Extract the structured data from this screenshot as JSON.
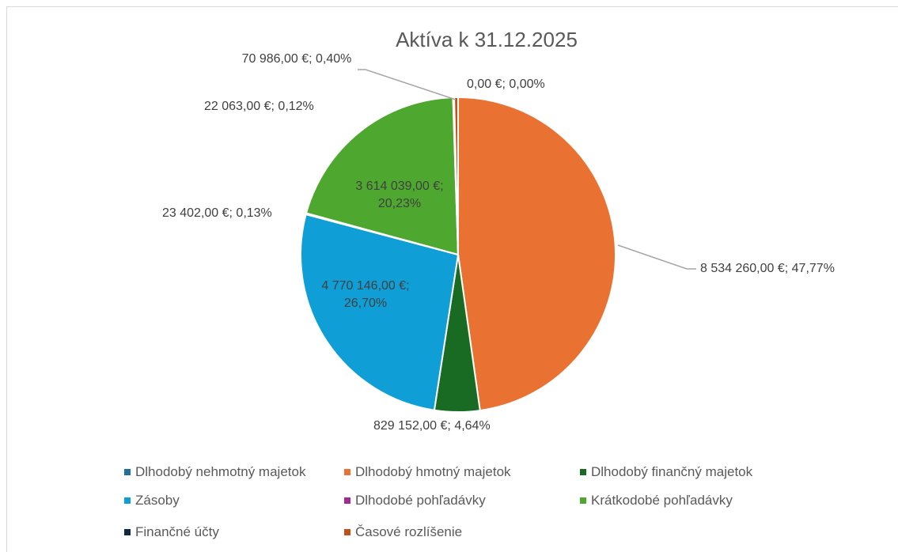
{
  "chart_data": {
    "type": "pie",
    "title": "Aktíva k 31.12.2025",
    "categories": [
      "Dlhodobý nehmotný majetok",
      "Dlhodobý hmotný majetok",
      "Dlhodobý finančný majetok",
      "Zásoby",
      "Dlhodobé pohľadávky",
      "Krátkodobé pohľadávky",
      "Finančné účty",
      "Časové rozlíšenie"
    ],
    "values": [
      0,
      8534260,
      829152,
      4770146,
      23402,
      3614039,
      22063,
      70986
    ],
    "value_labels": [
      "0,00 €; 0,00%",
      "8 534 260,00 €; 47,77%",
      "829 152,00 €; 4,64%",
      "4 770 146,00 €; 26,70%",
      "23 402,00 €; 0,13%",
      "3 614 039,00 €; 20,23%",
      "22 063,00 €; 0,12%",
      "70 986,00 €; 0,40%"
    ],
    "colors": [
      "#1f6f9a",
      "#e97132",
      "#196b24",
      "#0f9ed5",
      "#a02b93",
      "#4ea72e",
      "#0e2841",
      "#c0501a"
    ],
    "legend": "bottom"
  }
}
